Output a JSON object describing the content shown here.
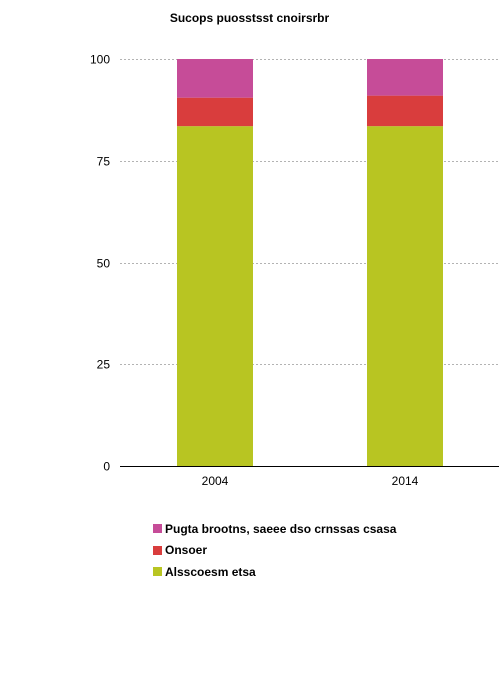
{
  "chart_data": {
    "type": "bar",
    "stacked": true,
    "title": "Sucops puosstsst cnoirsrbr",
    "categories": [
      "2004",
      "2014"
    ],
    "series": [
      {
        "name": "Alsscoesm etsa",
        "color": "#b8c522",
        "values": [
          83.5,
          83.5
        ]
      },
      {
        "name": "Onsoer",
        "color": "#d93d3d",
        "values": [
          7,
          7.5
        ]
      },
      {
        "name": "Pugta brootns, saeee dso crnssas csasa",
        "color": "#c64c98",
        "values": [
          9.5,
          9
        ]
      }
    ],
    "y_ticks": [
      "0",
      "25",
      "50",
      "75",
      "100"
    ],
    "ylim": [
      0,
      100
    ],
    "grid": true,
    "legend_position": "bottom"
  }
}
